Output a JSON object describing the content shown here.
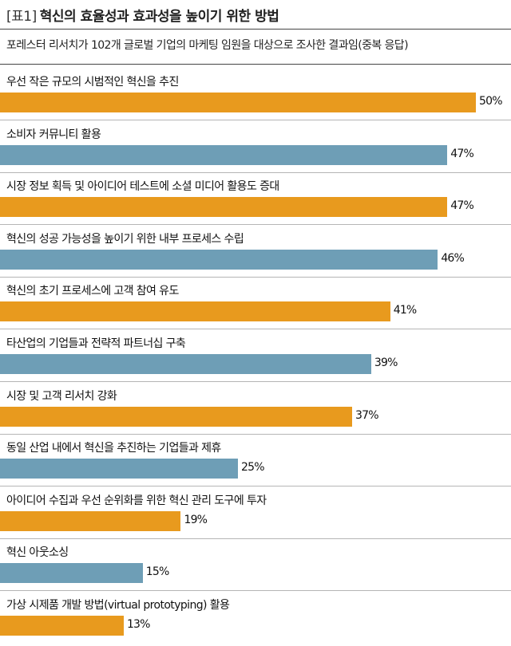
{
  "title": {
    "tag": "[표1]",
    "text": "혁신의 효율성과 효과성을 높이기 위한 방법"
  },
  "subtitle": "포레스터 리서치가 102개 글로벌 기업의 마케팅 임원을 대상으로 조사한 결과임(중복 응답)",
  "colors": {
    "orange": "#E89A1E",
    "blue": "#6E9EB6"
  },
  "chart_data": {
    "type": "bar",
    "orientation": "horizontal",
    "title": "혁신의 효율성과 효과성을 높이기 위한 방법",
    "unit": "%",
    "xlim": [
      0,
      100
    ],
    "grid": false,
    "categories": [
      "우선 작은 규모의 시범적인 혁신을 추진",
      "소비자 커뮤니티 활용",
      "시장 정보 획득 및 아이디어 테스트에 소셜 미디어 활용도 증대",
      "혁신의 성공 가능성을 높이기 위한 내부 프로세스 수립",
      "혁신의 초기 프로세스에 고객 참여 유도",
      "타산업의 기업들과 전략적 파트너십 구축",
      "시장 및 고객 리서치 강화",
      "동일 산업 내에서 혁신을 추진하는 기업들과 제휴",
      "아이디어 수집과 우선 순위화를 위한 혁신 관리 도구에 투자",
      "혁신 아웃소싱",
      "가상 시제품 개발 방법(virtual prototyping) 활용"
    ],
    "values": [
      50,
      47,
      47,
      46,
      41,
      39,
      37,
      25,
      19,
      15,
      13
    ],
    "value_labels": [
      "50%",
      "47%",
      "47%",
      "46%",
      "41%",
      "39%",
      "37%",
      "25%",
      "19%",
      "15%",
      "13%"
    ],
    "bar_colors": [
      "orange",
      "blue",
      "orange",
      "blue",
      "orange",
      "blue",
      "orange",
      "blue",
      "orange",
      "blue",
      "orange"
    ]
  }
}
